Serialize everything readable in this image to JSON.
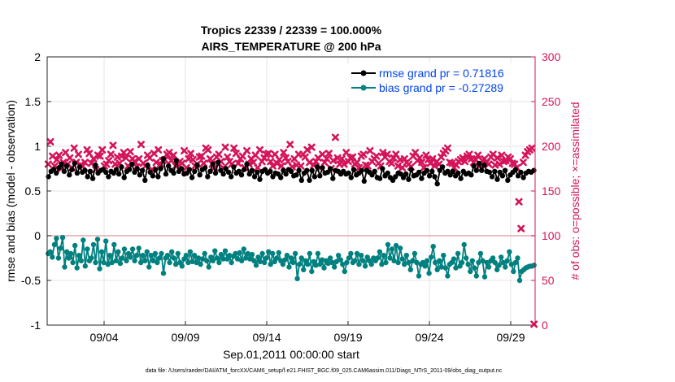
{
  "chart_data": {
    "type": "line",
    "title": [
      "Tropics 22339 / 22339 = 100.000%",
      "AIRS_TEMPERATURE @ 200 hPa"
    ],
    "xlabel": "Sep.01,2011 00:00:00 start",
    "ylabel_left": "rmse and bias (model - observation)",
    "ylabel_right": "# of obs: o=possible; ×=assimilated",
    "xlim": [
      0.5,
      30.5
    ],
    "ylim_left": [
      -1,
      2
    ],
    "ylim_right": [
      0,
      300
    ],
    "left_ticks": [
      -1,
      -0.5,
      0,
      0.5,
      1,
      1.5,
      2
    ],
    "left_tick_labels": [
      "-1",
      "-0.5",
      "0",
      "0.5",
      "1",
      "1.5",
      "2"
    ],
    "right_ticks": [
      0,
      50,
      100,
      150,
      200,
      250,
      300
    ],
    "right_tick_labels": [
      "0",
      "50",
      "100",
      "150",
      "200",
      "250",
      "300"
    ],
    "x_ticks": [
      {
        "x": 4,
        "label": "09/04"
      },
      {
        "x": 9,
        "label": "09/09"
      },
      {
        "x": 14,
        "label": "09/14"
      },
      {
        "x": 19,
        "label": "09/19"
      },
      {
        "x": 24,
        "label": "09/24"
      },
      {
        "x": 29,
        "label": "09/29"
      }
    ],
    "grid": true,
    "legend_position": "top-right",
    "series": [
      {
        "name": "rmse grand pr = 0.71816",
        "color": "#000000",
        "axis": "left",
        "values": [
          0.66,
          0.72,
          0.74,
          0.7,
          0.76,
          0.8,
          0.72,
          0.78,
          0.68,
          0.74,
          0.81,
          0.7,
          0.77,
          0.71,
          0.73,
          0.66,
          0.72,
          0.64,
          0.79,
          0.7,
          0.73,
          0.74,
          0.71,
          0.66,
          0.72,
          0.7,
          0.74,
          0.69,
          0.77,
          0.65,
          0.72,
          0.74,
          0.8,
          0.71,
          0.75,
          0.68,
          0.73,
          0.62,
          0.79,
          0.71,
          0.67,
          0.74,
          0.66,
          0.75,
          0.86,
          0.69,
          0.78,
          0.73,
          0.7,
          0.84,
          0.72,
          0.75,
          0.69,
          0.7,
          0.74,
          0.65,
          0.72,
          0.79,
          0.68,
          0.74,
          0.76,
          0.66,
          0.72,
          0.8,
          0.7,
          0.82,
          0.73,
          0.69,
          0.75,
          0.71,
          0.66,
          0.77,
          0.7,
          0.72,
          0.68,
          0.74,
          0.8,
          0.69,
          0.73,
          0.66,
          0.71,
          0.63,
          0.72,
          0.74,
          0.7,
          0.72,
          0.66,
          0.7,
          0.69,
          0.65,
          0.73,
          0.69,
          0.74,
          0.72,
          0.67,
          0.68,
          0.73,
          0.62,
          0.7,
          0.73,
          0.62,
          0.73,
          0.66,
          0.77,
          0.67,
          0.76,
          0.7,
          0.71,
          0.75,
          0.64,
          0.73,
          0.72,
          0.69,
          0.72,
          0.69,
          0.7,
          0.65,
          0.74,
          0.68,
          0.7,
          0.73,
          0.61,
          0.73,
          0.71,
          0.68,
          0.72,
          0.65,
          0.64,
          0.75,
          0.67,
          0.7,
          0.65,
          0.62,
          0.66,
          0.7,
          0.69,
          0.65,
          0.69,
          0.63,
          0.74,
          0.67,
          0.68,
          0.71,
          0.64,
          0.7,
          0.73,
          0.67,
          0.72,
          0.66,
          0.58,
          0.73,
          0.77,
          0.7,
          0.72,
          0.68,
          0.72,
          0.67,
          0.7,
          0.64,
          0.72,
          0.69,
          0.7,
          0.68,
          0.78,
          0.73,
          0.81,
          0.73,
          0.79,
          0.72,
          0.71,
          0.66,
          0.72,
          0.63,
          0.71,
          0.67,
          0.73,
          0.62,
          0.68,
          0.71,
          0.74,
          0.67,
          0.71,
          0.65,
          0.7,
          0.72,
          0.71,
          0.73
        ]
      },
      {
        "name": "bias grand pr = -0.27289",
        "color": "#00807f",
        "axis": "left",
        "values": [
          -0.2,
          -0.18,
          -0.24,
          -0.1,
          -0.03,
          -0.25,
          -0.14,
          -0.02,
          -0.35,
          -0.18,
          -0.25,
          -0.2,
          -0.3,
          -0.11,
          -0.36,
          -0.22,
          -0.28,
          -0.05,
          -0.34,
          -0.15,
          -0.28,
          -0.25,
          -0.1,
          -0.3,
          -0.04,
          -0.37,
          -0.18,
          -0.3,
          -0.06,
          -0.32,
          -0.22,
          -0.3,
          -0.1,
          -0.28,
          -0.18,
          -0.31,
          -0.25,
          -0.15,
          -0.28,
          -0.2,
          -0.24,
          -0.15,
          -0.28,
          -0.22,
          -0.14,
          -0.3,
          -0.22,
          -0.28,
          -0.18,
          -0.35,
          -0.22,
          -0.28,
          -0.2,
          -0.3,
          -0.25,
          -0.2,
          -0.42,
          -0.25,
          -0.22,
          -0.3,
          -0.18,
          -0.25,
          -0.32,
          -0.2,
          -0.3,
          -0.34,
          -0.26,
          -0.22,
          -0.3,
          -0.18,
          -0.29,
          -0.22,
          -0.3,
          -0.25,
          -0.32,
          -0.26,
          -0.2,
          -0.28,
          -0.35,
          -0.24,
          -0.28,
          -0.17,
          -0.25,
          -0.3,
          -0.21,
          -0.26,
          -0.17,
          -0.26,
          -0.22,
          -0.3,
          -0.23,
          -0.2,
          -0.26,
          -0.19,
          -0.28,
          -0.15,
          -0.25,
          -0.2,
          -0.26,
          -0.21,
          -0.28,
          -0.33,
          -0.24,
          -0.29,
          -0.2,
          -0.3,
          -0.25,
          -0.18,
          -0.32,
          -0.2,
          -0.29,
          -0.25,
          -0.19,
          -0.28,
          -0.32,
          -0.27,
          -0.22,
          -0.35,
          -0.25,
          -0.3,
          -0.2,
          -0.48,
          -0.32,
          -0.25,
          -0.38,
          -0.28,
          -0.32,
          -0.2,
          -0.4,
          -0.29,
          -0.33,
          -0.2,
          -0.32,
          -0.27,
          -0.36,
          -0.28,
          -0.31,
          -0.25,
          -0.3,
          -0.35,
          -0.29,
          -0.22,
          -0.27,
          -0.32,
          -0.4,
          -0.3,
          -0.25,
          -0.2,
          -0.3,
          -0.28,
          -0.2,
          -0.32,
          -0.22,
          -0.28,
          -0.34,
          -0.24,
          -0.28,
          -0.32,
          -0.25,
          -0.28,
          -0.25,
          -0.18,
          -0.32,
          -0.22,
          -0.3,
          -0.1,
          -0.25,
          -0.15,
          -0.28,
          -0.11,
          -0.3,
          -0.14,
          -0.26,
          -0.32,
          -0.22,
          -0.3,
          -0.38,
          -0.28,
          -0.2,
          -0.3,
          -0.45,
          -0.32,
          -0.3,
          -0.34,
          -0.28,
          -0.42,
          -0.24,
          -0.12,
          -0.3,
          -0.38,
          -0.28,
          -0.35,
          -0.22,
          -0.36,
          -0.45,
          -0.32,
          -0.3,
          -0.26,
          -0.36,
          -0.2,
          -0.34,
          -0.3,
          -0.1,
          -0.25,
          -0.32,
          -0.4,
          -0.28,
          -0.36,
          -0.45,
          -0.3,
          -0.2,
          -0.28,
          -0.46,
          -0.3,
          -0.35,
          -0.28,
          -0.25,
          -0.3,
          -0.38,
          -0.33,
          -0.24,
          -0.3,
          -0.35,
          -0.28,
          -0.18,
          -0.32,
          -0.4,
          -0.3,
          -0.25,
          -0.5,
          -0.4,
          -0.38,
          -0.36,
          -0.35,
          -0.34,
          -0.34,
          -0.33
        ]
      },
      {
        "name": "# of obs assimilated",
        "color": "#d4145a",
        "axis": "right",
        "marker": "x",
        "values": [
          180,
          205,
          189,
          178,
          185,
          190,
          175,
          182,
          193,
          180,
          187,
          176,
          198,
          182,
          191,
          179,
          178,
          182,
          196,
          192,
          181,
          186,
          174,
          190,
          189,
          196,
          178,
          180,
          184,
          191,
          201,
          180,
          188,
          181,
          189,
          193,
          187,
          178,
          194,
          186,
          183,
          177,
          186,
          202,
          181,
          178,
          190,
          187,
          174,
          192,
          182,
          196,
          180,
          184,
          185,
          191,
          193,
          184,
          190,
          178,
          180,
          183,
          181,
          195,
          176,
          186,
          192,
          185,
          178,
          180,
          188,
          189,
          181,
          198,
          196,
          186,
          180,
          176,
          188,
          191,
          183,
          176,
          199,
          188,
          183,
          180,
          198,
          192,
          181,
          186,
          189,
          176,
          195,
          180,
          186,
          182,
          190,
          176,
          196,
          183,
          187,
          191,
          192,
          183,
          178,
          191,
          181,
          185,
          178,
          193,
          187,
          183,
          202,
          177,
          186,
          179,
          191,
          178,
          191,
          188,
          196,
          182,
          199,
          179,
          183,
          187,
          176,
          191,
          182,
          186,
          192,
          175,
          184,
          210,
          187,
          180,
          186,
          180,
          193,
          183,
          187,
          188,
          180,
          182,
          176,
          189,
          191,
          179,
          178,
          195,
          183,
          186,
          189,
          181,
          178,
          193,
          188,
          191,
          183,
          181,
          187,
          191,
          178,
          185,
          176,
          186,
          182,
          180,
          177,
          189,
          193,
          184,
          187,
          182,
          176,
          190,
          185,
          181,
          186,
          178,
          183,
          180,
          188,
          192,
          195,
          198,
          182,
          181,
          176,
          179,
          183,
          185,
          187,
          183,
          189,
          191,
          186,
          182,
          185,
          190,
          178,
          184,
          186,
          182,
          180,
          188,
          191,
          179,
          187,
          180,
          190,
          183,
          184,
          188,
          186,
          181,
          180,
          176,
          138,
          108,
          182,
          190,
          194,
          196,
          198,
          1
        ]
      }
    ]
  },
  "footer": {
    "data_file": "data file: /Users/raeder/DAI/ATM_forcXX/CAM6_setup/f.e21.FHIST_BGC.f09_025.CAM6assim.011/Diags_NTrS_2011-09/obs_diag_output.nc"
  },
  "colors": {
    "left_axis": "#000000",
    "right_axis": "#d4145a",
    "legend_text": "#0044ee",
    "zero_line": "#e0a8a8"
  }
}
